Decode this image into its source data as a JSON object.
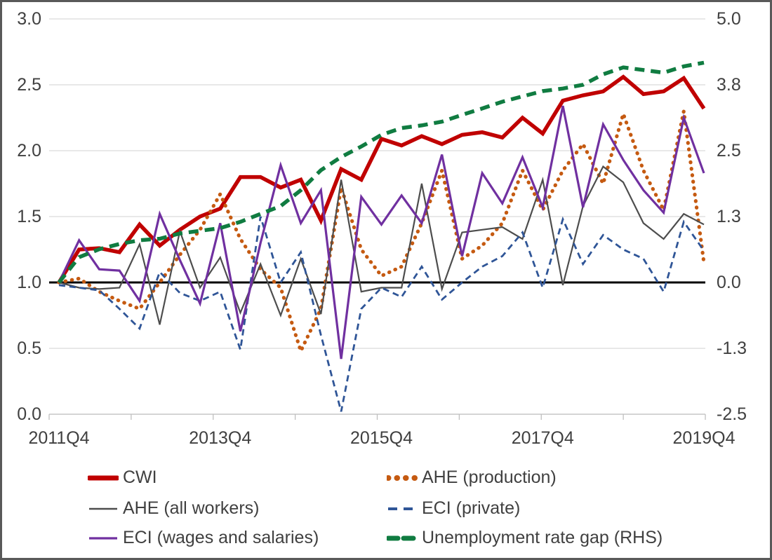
{
  "chart_data": {
    "type": "line",
    "title": "",
    "categories": [
      "2011Q4",
      "2012Q1",
      "2012Q2",
      "2012Q3",
      "2012Q4",
      "2013Q1",
      "2013Q2",
      "2013Q3",
      "2013Q4",
      "2014Q1",
      "2014Q2",
      "2014Q3",
      "2014Q4",
      "2015Q1",
      "2015Q2",
      "2015Q3",
      "2015Q4",
      "2016Q1",
      "2016Q2",
      "2016Q3",
      "2016Q4",
      "2017Q1",
      "2017Q2",
      "2017Q3",
      "2017Q4",
      "2018Q1",
      "2018Q2",
      "2018Q3",
      "2018Q4",
      "2019Q1",
      "2019Q2",
      "2019Q3",
      "2019Q4"
    ],
    "x_tick_labels": [
      {
        "label": "2011Q4",
        "index": 0
      },
      {
        "label": "2013Q4",
        "index": 8
      },
      {
        "label": "2015Q4",
        "index": 16
      },
      {
        "label": "2017Q4",
        "index": 24
      },
      {
        "label": "2019Q4",
        "index": 32
      }
    ],
    "left_axis": {
      "min": 0.0,
      "max": 3.0,
      "ticks": [
        "3.0",
        "2.5",
        "2.0",
        "1.5",
        "1.0",
        "0.5",
        "0.0"
      ]
    },
    "right_axis": {
      "min": -2.5,
      "max": 5.0,
      "ticks": [
        "5.0",
        "3.8",
        "2.5",
        "1.3",
        "0.0",
        "-1.3",
        "-2.5"
      ]
    },
    "baseline_left_value": 1.0,
    "grid": true,
    "legend_position": "bottom",
    "colors": {
      "grid": "#D9D9D9",
      "axis": "#BFBFBF",
      "baseline": "#000000",
      "text": "#404040"
    },
    "series": [
      {
        "name": "CWI",
        "color": "#C00000",
        "style": "solid-thick",
        "axis": "left",
        "values": [
          1.0,
          1.25,
          1.26,
          1.23,
          1.44,
          1.28,
          1.4,
          1.5,
          1.56,
          1.8,
          1.8,
          1.72,
          1.78,
          1.47,
          1.86,
          1.78,
          2.09,
          2.04,
          2.11,
          2.05,
          2.12,
          2.14,
          2.1,
          2.25,
          2.13,
          2.38,
          2.42,
          2.45,
          2.56,
          2.43,
          2.45,
          2.55,
          2.32
        ]
      },
      {
        "name": "AHE (production)",
        "color": "#C55A11",
        "style": "dotted",
        "axis": "left",
        "values": [
          1.0,
          1.03,
          0.93,
          0.86,
          0.8,
          1.0,
          1.21,
          1.4,
          1.67,
          1.33,
          1.1,
          0.96,
          0.48,
          0.8,
          1.72,
          1.25,
          1.05,
          1.12,
          1.45,
          1.85,
          1.18,
          1.28,
          1.45,
          1.85,
          1.55,
          1.85,
          2.05,
          1.75,
          2.28,
          1.85,
          1.55,
          2.3,
          1.15
        ]
      },
      {
        "name": "AHE (all workers)",
        "color": "#4D4D4D",
        "style": "solid-thin",
        "axis": "left",
        "values": [
          1.0,
          0.96,
          0.95,
          0.96,
          1.29,
          0.68,
          1.39,
          0.96,
          1.19,
          0.77,
          1.14,
          0.75,
          1.18,
          0.76,
          1.78,
          0.93,
          0.96,
          0.96,
          1.75,
          0.95,
          1.38,
          1.4,
          1.42,
          1.33,
          1.78,
          0.98,
          1.58,
          1.88,
          1.76,
          1.45,
          1.33,
          1.52,
          1.44
        ]
      },
      {
        "name": "ECI (private)",
        "color": "#2F5597",
        "style": "dashed",
        "axis": "left",
        "values": [
          0.98,
          0.96,
          0.94,
          0.8,
          0.65,
          1.08,
          0.92,
          0.86,
          0.93,
          0.49,
          1.5,
          1.0,
          1.23,
          0.6,
          0.02,
          0.8,
          0.96,
          0.89,
          1.12,
          0.87,
          1.0,
          1.12,
          1.2,
          1.38,
          0.96,
          1.48,
          1.14,
          1.36,
          1.25,
          1.18,
          0.93,
          1.46,
          1.24
        ]
      },
      {
        "name": "ECI (wages and salaries)",
        "color": "#7030A0",
        "style": "solid-medium",
        "axis": "left",
        "values": [
          1.0,
          1.32,
          1.1,
          1.09,
          0.86,
          1.52,
          1.17,
          0.84,
          1.45,
          0.63,
          1.3,
          1.89,
          1.45,
          1.7,
          0.42,
          1.65,
          1.44,
          1.66,
          1.45,
          1.97,
          1.2,
          1.83,
          1.6,
          1.95,
          1.57,
          2.34,
          1.57,
          2.2,
          1.93,
          1.7,
          1.53,
          2.25,
          1.83
        ]
      },
      {
        "name": "Unemployment rate gap (RHS)",
        "color": "#107C41",
        "style": "dashed-thick",
        "axis": "right",
        "values": [
          0.0,
          0.48,
          0.63,
          0.73,
          0.8,
          0.83,
          0.93,
          0.98,
          1.03,
          1.15,
          1.3,
          1.45,
          1.75,
          2.13,
          2.38,
          2.58,
          2.8,
          2.93,
          2.98,
          3.05,
          3.18,
          3.3,
          3.43,
          3.53,
          3.63,
          3.68,
          3.75,
          3.95,
          4.08,
          4.03,
          3.98,
          4.1,
          4.17
        ]
      }
    ]
  }
}
